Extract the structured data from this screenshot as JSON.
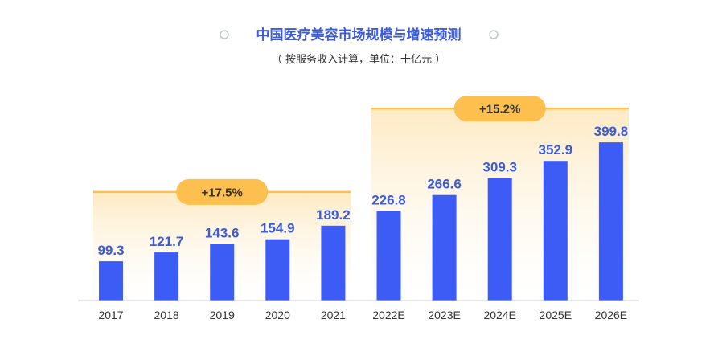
{
  "chart_data": {
    "type": "bar",
    "title": "中国医疗美容市场规模与增速预测",
    "subtitle": "（ 按服务收入计算，单位：十亿元 ）",
    "categories": [
      "2017",
      "2018",
      "2019",
      "2020",
      "2021",
      "2022E",
      "2023E",
      "2024E",
      "2025E",
      "2026E"
    ],
    "values": [
      99.3,
      121.7,
      143.6,
      154.9,
      189.2,
      226.8,
      266.6,
      309.3,
      352.9,
      399.8
    ],
    "value_labels": [
      "99.3",
      "121.7",
      "143.6",
      "154.9",
      "189.2",
      "226.8",
      "266.6",
      "309.3",
      "352.9",
      "399.8"
    ],
    "ylim": [
      0,
      400
    ],
    "grid": false,
    "bar_color": "#3d5cf5",
    "annotations": [
      {
        "label": "+17.5%",
        "from": "2017",
        "to": "2021"
      },
      {
        "label": "+15.2%",
        "from": "2022E",
        "to": "2026E"
      }
    ],
    "annotation_color": "#fdbf4e"
  }
}
